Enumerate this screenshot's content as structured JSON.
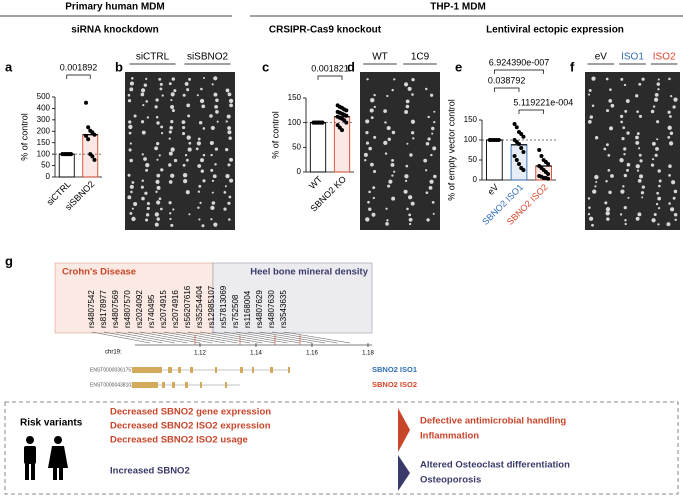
{
  "headers": {
    "primary": "Primary human MDM",
    "thp1": "THP-1 MDM",
    "sirna": "siRNA knockdown",
    "crispr": "CRSIPR-Cas9 knockout",
    "lenti": "Lentiviral ectopic expression"
  },
  "panel_letters": [
    "a",
    "b",
    "c",
    "d",
    "e",
    "f",
    "g"
  ],
  "chart_data": [
    {
      "type": "bar",
      "ylabel": "% of control",
      "categories": [
        "siCTRL",
        "siSBNO2"
      ],
      "values": [
        100,
        185
      ],
      "colors": [
        "#000000",
        "#d9452a"
      ],
      "points": [
        [
          100,
          100,
          100,
          100,
          100,
          100,
          100,
          100,
          100,
          100
        ],
        [
          450,
          235,
          205,
          195,
          185,
          180,
          165,
          100,
          90,
          75
        ]
      ],
      "ylim": [
        0,
        500
      ],
      "yticks": [
        0,
        50,
        100,
        150,
        200,
        300,
        400,
        500
      ],
      "hline": 100,
      "comparisons": [
        "0.001892"
      ]
    },
    {
      "type": "bar",
      "ylabel": "% of control",
      "categories": [
        "WT",
        "SBNO2 KO"
      ],
      "values": [
        100,
        112
      ],
      "colors": [
        "#000000",
        "#d9452a"
      ],
      "points": [
        [
          100,
          100,
          100,
          100,
          100,
          100,
          100,
          100,
          100,
          100,
          100,
          100,
          100,
          100,
          100
        ],
        [
          135,
          132,
          130,
          127,
          125,
          122,
          120,
          118,
          116,
          114,
          112,
          110,
          108,
          105,
          100,
          95,
          90,
          85
        ]
      ],
      "ylim": [
        0,
        150
      ],
      "yticks": [
        0,
        50,
        100,
        150
      ],
      "hline": 100,
      "comparisons": [
        "0.001821"
      ]
    },
    {
      "type": "bar",
      "ylabel": "% of empty vector control",
      "categories": [
        "eV",
        "SBNO2 ISO1",
        "SBNO2 ISO2"
      ],
      "values": [
        100,
        88,
        35
      ],
      "colors": [
        "#000000",
        "#2f6fb5",
        "#d9452a"
      ],
      "label_colors": [
        "#000000",
        "#2f6fb5",
        "#d9452a"
      ],
      "points": [
        [
          100,
          100,
          100,
          100,
          100,
          100
        ],
        [
          140,
          132,
          120,
          115,
          108,
          100,
          95,
          90,
          80,
          70,
          60,
          50,
          40,
          30,
          25
        ],
        [
          75,
          60,
          50,
          45,
          40,
          35,
          30,
          25,
          20,
          15,
          10,
          8,
          5,
          5,
          3
        ]
      ],
      "ylim": [
        0,
        150
      ],
      "yticks": [
        0,
        50,
        100,
        150
      ],
      "hline": 100,
      "comparisons": [
        "6.924390e-007",
        "0.038792",
        "5.119221e-004"
      ]
    }
  ],
  "gels": {
    "b": [
      "siCTRL",
      "siSBNO2"
    ],
    "d": [
      "WT",
      "1C9"
    ],
    "f": [
      "eV",
      "ISO1",
      "ISO2"
    ]
  },
  "genome": {
    "regions": [
      "Crohn's Disease",
      "Heel bone mineral density"
    ],
    "snps": [
      "rs4807542",
      "rs8178977",
      "rs4807569",
      "rs4807570",
      "rs2024092",
      "rs740495",
      "rs2074915",
      "rs2074916",
      "rs56207616",
      "rs35254404",
      "rs12985107",
      "rs57813069",
      "rs752508",
      "rs1168004",
      "rs4807629",
      "rs4807630",
      "rs3543635"
    ],
    "chrom": "chr19:",
    "ticks": [
      1.12,
      1.14,
      1.16,
      1.18
    ],
    "transcripts": [
      {
        "id": "ENST00000361757",
        "name": "SBNO2 ISO1"
      },
      {
        "id": "ENST00000438103",
        "name": "SBNO2 ISO2"
      }
    ]
  },
  "summary": {
    "label": "Risk variants",
    "groups": [
      {
        "causes": [
          "Decreased SBNO2 gene expression",
          "Decreased SBNO2 ISO2 expression",
          "Decreased SBNO2 ISO2 usage"
        ],
        "effects": [
          "Defective antimicrobial handling",
          "Inflammation"
        ]
      },
      {
        "causes": [
          "Increased SBNO2"
        ],
        "effects": [
          "Altered Osteoclast differentiation",
          "Osteoporosis"
        ]
      }
    ]
  }
}
